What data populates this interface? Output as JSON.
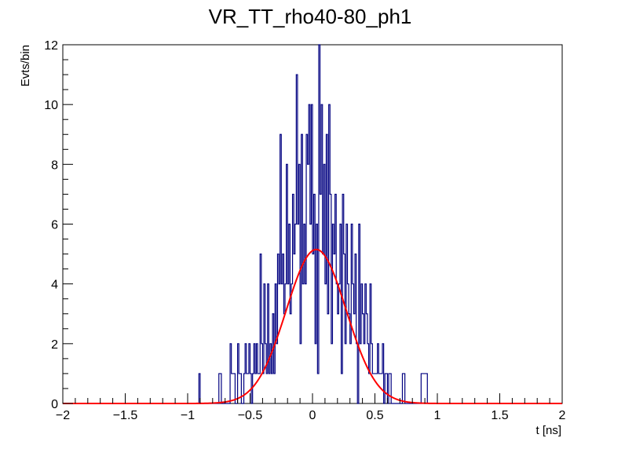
{
  "chart_data": {
    "type": "histogram",
    "title": "VR_TT_rho40-80_ph1",
    "xlabel": "t [ns]",
    "ylabel": "Evts/bin",
    "xlim": [
      -2,
      2
    ],
    "ylim": [
      0,
      12
    ],
    "x_ticks": [
      -2,
      -1.5,
      -1,
      -0.5,
      0,
      0.5,
      1,
      1.5,
      2
    ],
    "x_tick_labels": [
      "−2",
      "−1.5",
      "−1",
      "−0.5",
      "0",
      "0.5",
      "1",
      "1.5",
      "2"
    ],
    "y_ticks": [
      0,
      2,
      4,
      6,
      8,
      10,
      12
    ],
    "y_tick_labels": [
      "0",
      "2",
      "4",
      "6",
      "8",
      "10",
      "12"
    ],
    "bins": {
      "low": -2,
      "width": 0.01,
      "count": 400
    },
    "series": [
      {
        "name": "histogram",
        "color": "#000080",
        "bin_counts": {
          "-0.91": 1,
          "-0.75": 1,
          "-0.74": 1,
          "-0.66": 2,
          "-0.65": 1,
          "-0.64": 1,
          "-0.63": 1,
          "-0.60": 2,
          "-0.59": 1,
          "-0.58": 1,
          "-0.55": 1,
          "-0.54": 2,
          "-0.53": 1,
          "-0.52": 1,
          "-0.51": 2,
          "-0.50": 1,
          "-0.48": 1,
          "-0.47": 2,
          "-0.46": 1,
          "-0.45": 2,
          "-0.44": 1,
          "-0.43": 1,
          "-0.42": 5,
          "-0.41": 2,
          "-0.40": 1,
          "-0.39": 4,
          "-0.38": 2,
          "-0.37": 1,
          "-0.36": 4,
          "-0.35": 1,
          "-0.34": 2,
          "-0.33": 1,
          "-0.32": 3,
          "-0.31": 1,
          "-0.30": 4,
          "-0.29": 2,
          "-0.28": 5,
          "-0.27": 4,
          "-0.26": 9,
          "-0.25": 4,
          "-0.24": 5,
          "-0.23": 3,
          "-0.22": 4,
          "-0.21": 8,
          "-0.20": 4,
          "-0.19": 6,
          "-0.18": 3,
          "-0.17": 4,
          "-0.16": 7,
          "-0.15": 5,
          "-0.14": 6,
          "-0.13": 11,
          "-0.12": 6,
          "-0.11": 8,
          "-0.10": 2,
          "-0.09": 9,
          "-0.08": 4,
          "-0.07": 6,
          "-0.06": 4,
          "-0.05": 9,
          "-0.04": 8,
          "-0.03": 10,
          "-0.02": 6,
          "-0.01": 10,
          "0.00": 5,
          "0.01": 7,
          "0.02": 2,
          "0.03": 6,
          "0.04": 1,
          "0.05": 12,
          "0.06": 7,
          "0.07": 10,
          "0.08": 5,
          "0.09": 8,
          "0.10": 4,
          "0.11": 9,
          "0.12": 3,
          "0.13": 10,
          "0.14": 7,
          "0.15": 2,
          "0.16": 6,
          "0.17": 5,
          "0.18": 7,
          "0.19": 4,
          "0.20": 3,
          "0.21": 4,
          "0.22": 6,
          "0.23": 1,
          "0.24": 7,
          "0.25": 5,
          "0.26": 2,
          "0.27": 6,
          "0.28": 4,
          "0.29": 3,
          "0.30": 2,
          "0.31": 6,
          "0.32": 4,
          "0.33": 3,
          "0.34": 5,
          "0.35": 2,
          "0.36": 0,
          "0.37": 6,
          "0.38": 2,
          "0.39": 4,
          "0.40": 3,
          "0.41": 2,
          "0.42": 4,
          "0.43": 3,
          "0.44": 2,
          "0.45": 1,
          "0.46": 4,
          "0.47": 2,
          "0.48": 1,
          "0.49": 1,
          "0.50": 1,
          "0.51": 1,
          "0.52": 2,
          "0.53": 1,
          "0.54": 1,
          "0.55": 1,
          "0.56": 2,
          "0.57": 0,
          "0.58": 1,
          "0.59": 1,
          "0.61": 1,
          "0.62": 1,
          "0.72": 1,
          "0.73": 1,
          "0.87": 1,
          "0.88": 1,
          "0.89": 1,
          "0.90": 1,
          "0.91": 1
        }
      },
      {
        "name": "gaussian fit",
        "type": "line",
        "color": "#ff0000",
        "function": "gaussian",
        "amplitude": 5.15,
        "mean": 0.03,
        "sigma": 0.24
      }
    ]
  }
}
